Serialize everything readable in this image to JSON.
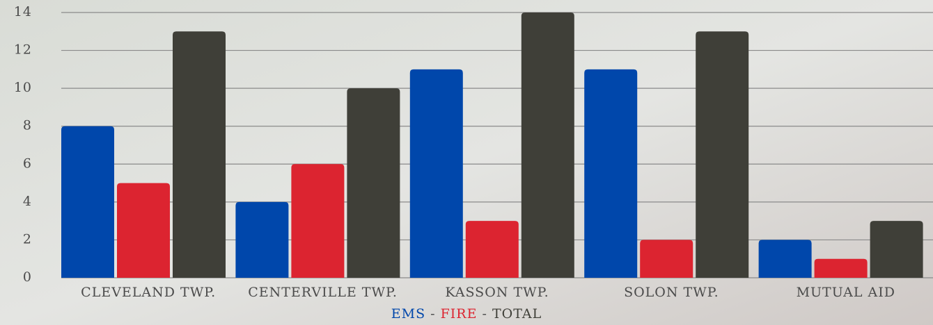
{
  "chart_data": {
    "type": "bar",
    "categories": [
      "CLEVELAND TWP.",
      "CENTERVILLE TWP.",
      "KASSON TWP.",
      "SOLON TWP.",
      "MUTUAL AID"
    ],
    "series": [
      {
        "name": "EMS",
        "color": "#0047ab",
        "values": [
          8,
          4,
          11,
          11,
          2
        ]
      },
      {
        "name": "FIRE",
        "color": "#dc2430",
        "values": [
          5,
          6,
          3,
          2,
          1
        ]
      },
      {
        "name": "TOTAL",
        "color": "#3f3f38",
        "values": [
          13,
          10,
          14,
          13,
          3
        ]
      }
    ],
    "legend_separator": "-",
    "ylim": [
      0,
      14
    ],
    "yticks": [
      0,
      2,
      4,
      6,
      8,
      10,
      12,
      14
    ],
    "grid": true
  }
}
